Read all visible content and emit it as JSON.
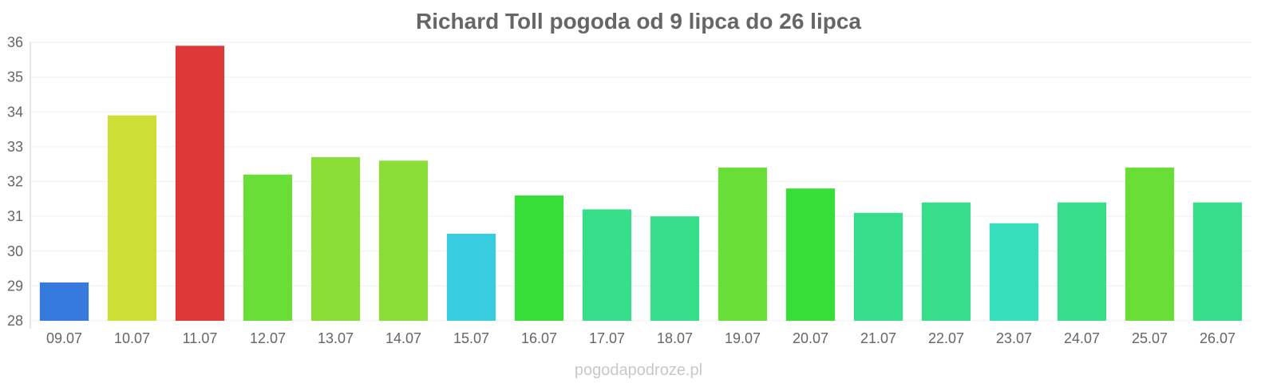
{
  "chart_data": {
    "type": "bar",
    "title": "Richard Toll pogoda od 9 lipca do 26 lipca",
    "xlabel": "",
    "ylabel": "",
    "ylim": [
      28,
      36
    ],
    "yticks": [
      28,
      29,
      30,
      31,
      32,
      33,
      34,
      35,
      36
    ],
    "grid": true,
    "legend": "none",
    "categories": [
      "09.07",
      "10.07",
      "11.07",
      "12.07",
      "13.07",
      "14.07",
      "15.07",
      "16.07",
      "17.07",
      "18.07",
      "19.07",
      "20.07",
      "21.07",
      "22.07",
      "23.07",
      "24.07",
      "25.07",
      "26.07"
    ],
    "values": [
      29.1,
      33.9,
      35.9,
      32.2,
      32.7,
      32.6,
      30.5,
      31.6,
      31.2,
      31.0,
      32.4,
      31.8,
      31.1,
      31.4,
      30.8,
      31.4,
      32.4,
      31.4
    ],
    "colors": [
      "#3377dd",
      "#ccdd33",
      "#dd3333",
      "#66dd33",
      "#88dd33",
      "#88dd33",
      "#33ccdd",
      "#33dd33",
      "#33dd88",
      "#33dd88",
      "#66dd33",
      "#33dd33",
      "#33dd88",
      "#33dd88",
      "#33ddbb",
      "#33dd88",
      "#66dd33",
      "#33dd88"
    ]
  },
  "watermark": "pogodapodroze.pl"
}
